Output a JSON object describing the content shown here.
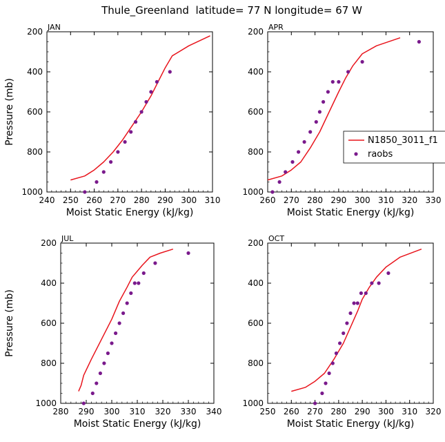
{
  "figure": {
    "title": "Thule_Greenland  latitude= 77 N longitude= 67 W"
  },
  "legend": {
    "model_label": "N1850_3011_f1",
    "obs_label": "raobs",
    "placement": "right-middle of top-right panel"
  },
  "colors": {
    "model": "#e8141c",
    "obs": "#7a1a8c",
    "axis": "#000000"
  },
  "chart_data": [
    {
      "type": "line",
      "panel": "JAN",
      "title": "JAN",
      "xlabel": "Moist Static Energy (kJ/kg)",
      "ylabel": "Pressure (mb)",
      "xlim": [
        240,
        310
      ],
      "ylim": [
        1000,
        200
      ],
      "xticks": [
        240,
        250,
        260,
        270,
        280,
        290,
        300,
        310
      ],
      "yticks": [
        200,
        400,
        600,
        800,
        1000
      ],
      "series": [
        {
          "name": "N1850_3011_f1",
          "kind": "line",
          "x": [
            250,
            256,
            260,
            264,
            268,
            272,
            276,
            280,
            284,
            287,
            290,
            293,
            300,
            309
          ],
          "y": [
            940,
            920,
            890,
            850,
            800,
            740,
            670,
            600,
            520,
            450,
            380,
            320,
            270,
            220
          ]
        },
        {
          "name": "raobs",
          "kind": "scatter",
          "x": [
            256,
            261,
            264,
            267,
            270,
            273,
            275.5,
            277.5,
            280,
            282,
            284,
            286.5,
            292
          ],
          "y": [
            1000,
            950,
            900,
            850,
            800,
            750,
            700,
            650,
            600,
            550,
            500,
            450,
            400
          ]
        }
      ]
    },
    {
      "type": "line",
      "panel": "APR",
      "title": "APR",
      "xlabel": "Moist Static Energy (kJ/kg)",
      "ylabel": "",
      "xlim": [
        260,
        330
      ],
      "ylim": [
        1000,
        200
      ],
      "xticks": [
        260,
        270,
        280,
        290,
        300,
        310,
        320,
        330
      ],
      "yticks": [
        200,
        400,
        600,
        800,
        1000
      ],
      "series": [
        {
          "name": "N1850_3011_f1",
          "kind": "line",
          "x": [
            260,
            266,
            270,
            274,
            278,
            282,
            286,
            290,
            293,
            296,
            300,
            306,
            316
          ],
          "y": [
            940,
            920,
            890,
            850,
            780,
            700,
            600,
            500,
            430,
            370,
            310,
            270,
            230
          ]
        },
        {
          "name": "raobs",
          "kind": "scatter",
          "x": [
            262,
            265,
            267.5,
            270.5,
            273,
            275.5,
            278,
            280.5,
            282,
            283.5,
            285.5,
            287.5,
            290,
            294,
            300,
            324
          ],
          "y": [
            1000,
            950,
            900,
            850,
            800,
            750,
            700,
            650,
            600,
            550,
            500,
            450,
            450,
            400,
            350,
            250
          ]
        }
      ]
    },
    {
      "type": "line",
      "panel": "JUL",
      "title": "JUL",
      "xlabel": "Moist Static Energy (kJ/kg)",
      "ylabel": "Pressure (mb)",
      "xlim": [
        280,
        340
      ],
      "ylim": [
        1000,
        200
      ],
      "xticks": [
        280,
        290,
        300,
        310,
        320,
        330,
        340
      ],
      "yticks": [
        200,
        400,
        600,
        800,
        1000
      ],
      "series": [
        {
          "name": "N1850_3011_f1",
          "kind": "line",
          "x": [
            287,
            288,
            289,
            292,
            296,
            300,
            303,
            306,
            308,
            310,
            312,
            315,
            319,
            324
          ],
          "y": [
            940,
            910,
            860,
            780,
            680,
            580,
            490,
            420,
            370,
            340,
            310,
            270,
            250,
            230
          ]
        },
        {
          "name": "raobs",
          "kind": "scatter",
          "x": [
            289,
            292.5,
            294,
            295.5,
            297,
            298.5,
            300,
            301.5,
            303,
            304.5,
            306,
            307.5,
            309,
            310.5,
            312.5,
            317,
            330
          ],
          "y": [
            1000,
            950,
            900,
            850,
            800,
            750,
            700,
            650,
            600,
            550,
            500,
            450,
            400,
            400,
            350,
            300,
            250
          ]
        }
      ]
    },
    {
      "type": "line",
      "panel": "OCT",
      "title": "OCT",
      "xlabel": "Moist Static Energy (kJ/kg)",
      "ylabel": "",
      "xlim": [
        250,
        320
      ],
      "ylim": [
        1000,
        200
      ],
      "xticks": [
        250,
        260,
        270,
        280,
        290,
        300,
        310,
        320
      ],
      "yticks": [
        200,
        400,
        600,
        800,
        1000
      ],
      "series": [
        {
          "name": "N1850_3011_f1",
          "kind": "line",
          "x": [
            260,
            266,
            270,
            274,
            278,
            282,
            285,
            288,
            290,
            293,
            296,
            300,
            306,
            315
          ],
          "y": [
            940,
            920,
            890,
            850,
            780,
            700,
            620,
            540,
            480,
            420,
            370,
            320,
            270,
            230
          ]
        },
        {
          "name": "raobs",
          "kind": "scatter",
          "x": [
            270,
            273,
            274.5,
            276,
            277.5,
            279,
            280.5,
            282,
            283.5,
            285,
            286.5,
            288,
            289.5,
            291.5,
            294,
            297,
            301
          ],
          "y": [
            1000,
            950,
            900,
            850,
            800,
            750,
            700,
            650,
            600,
            550,
            500,
            500,
            450,
            450,
            400,
            400,
            350
          ]
        }
      ]
    }
  ]
}
